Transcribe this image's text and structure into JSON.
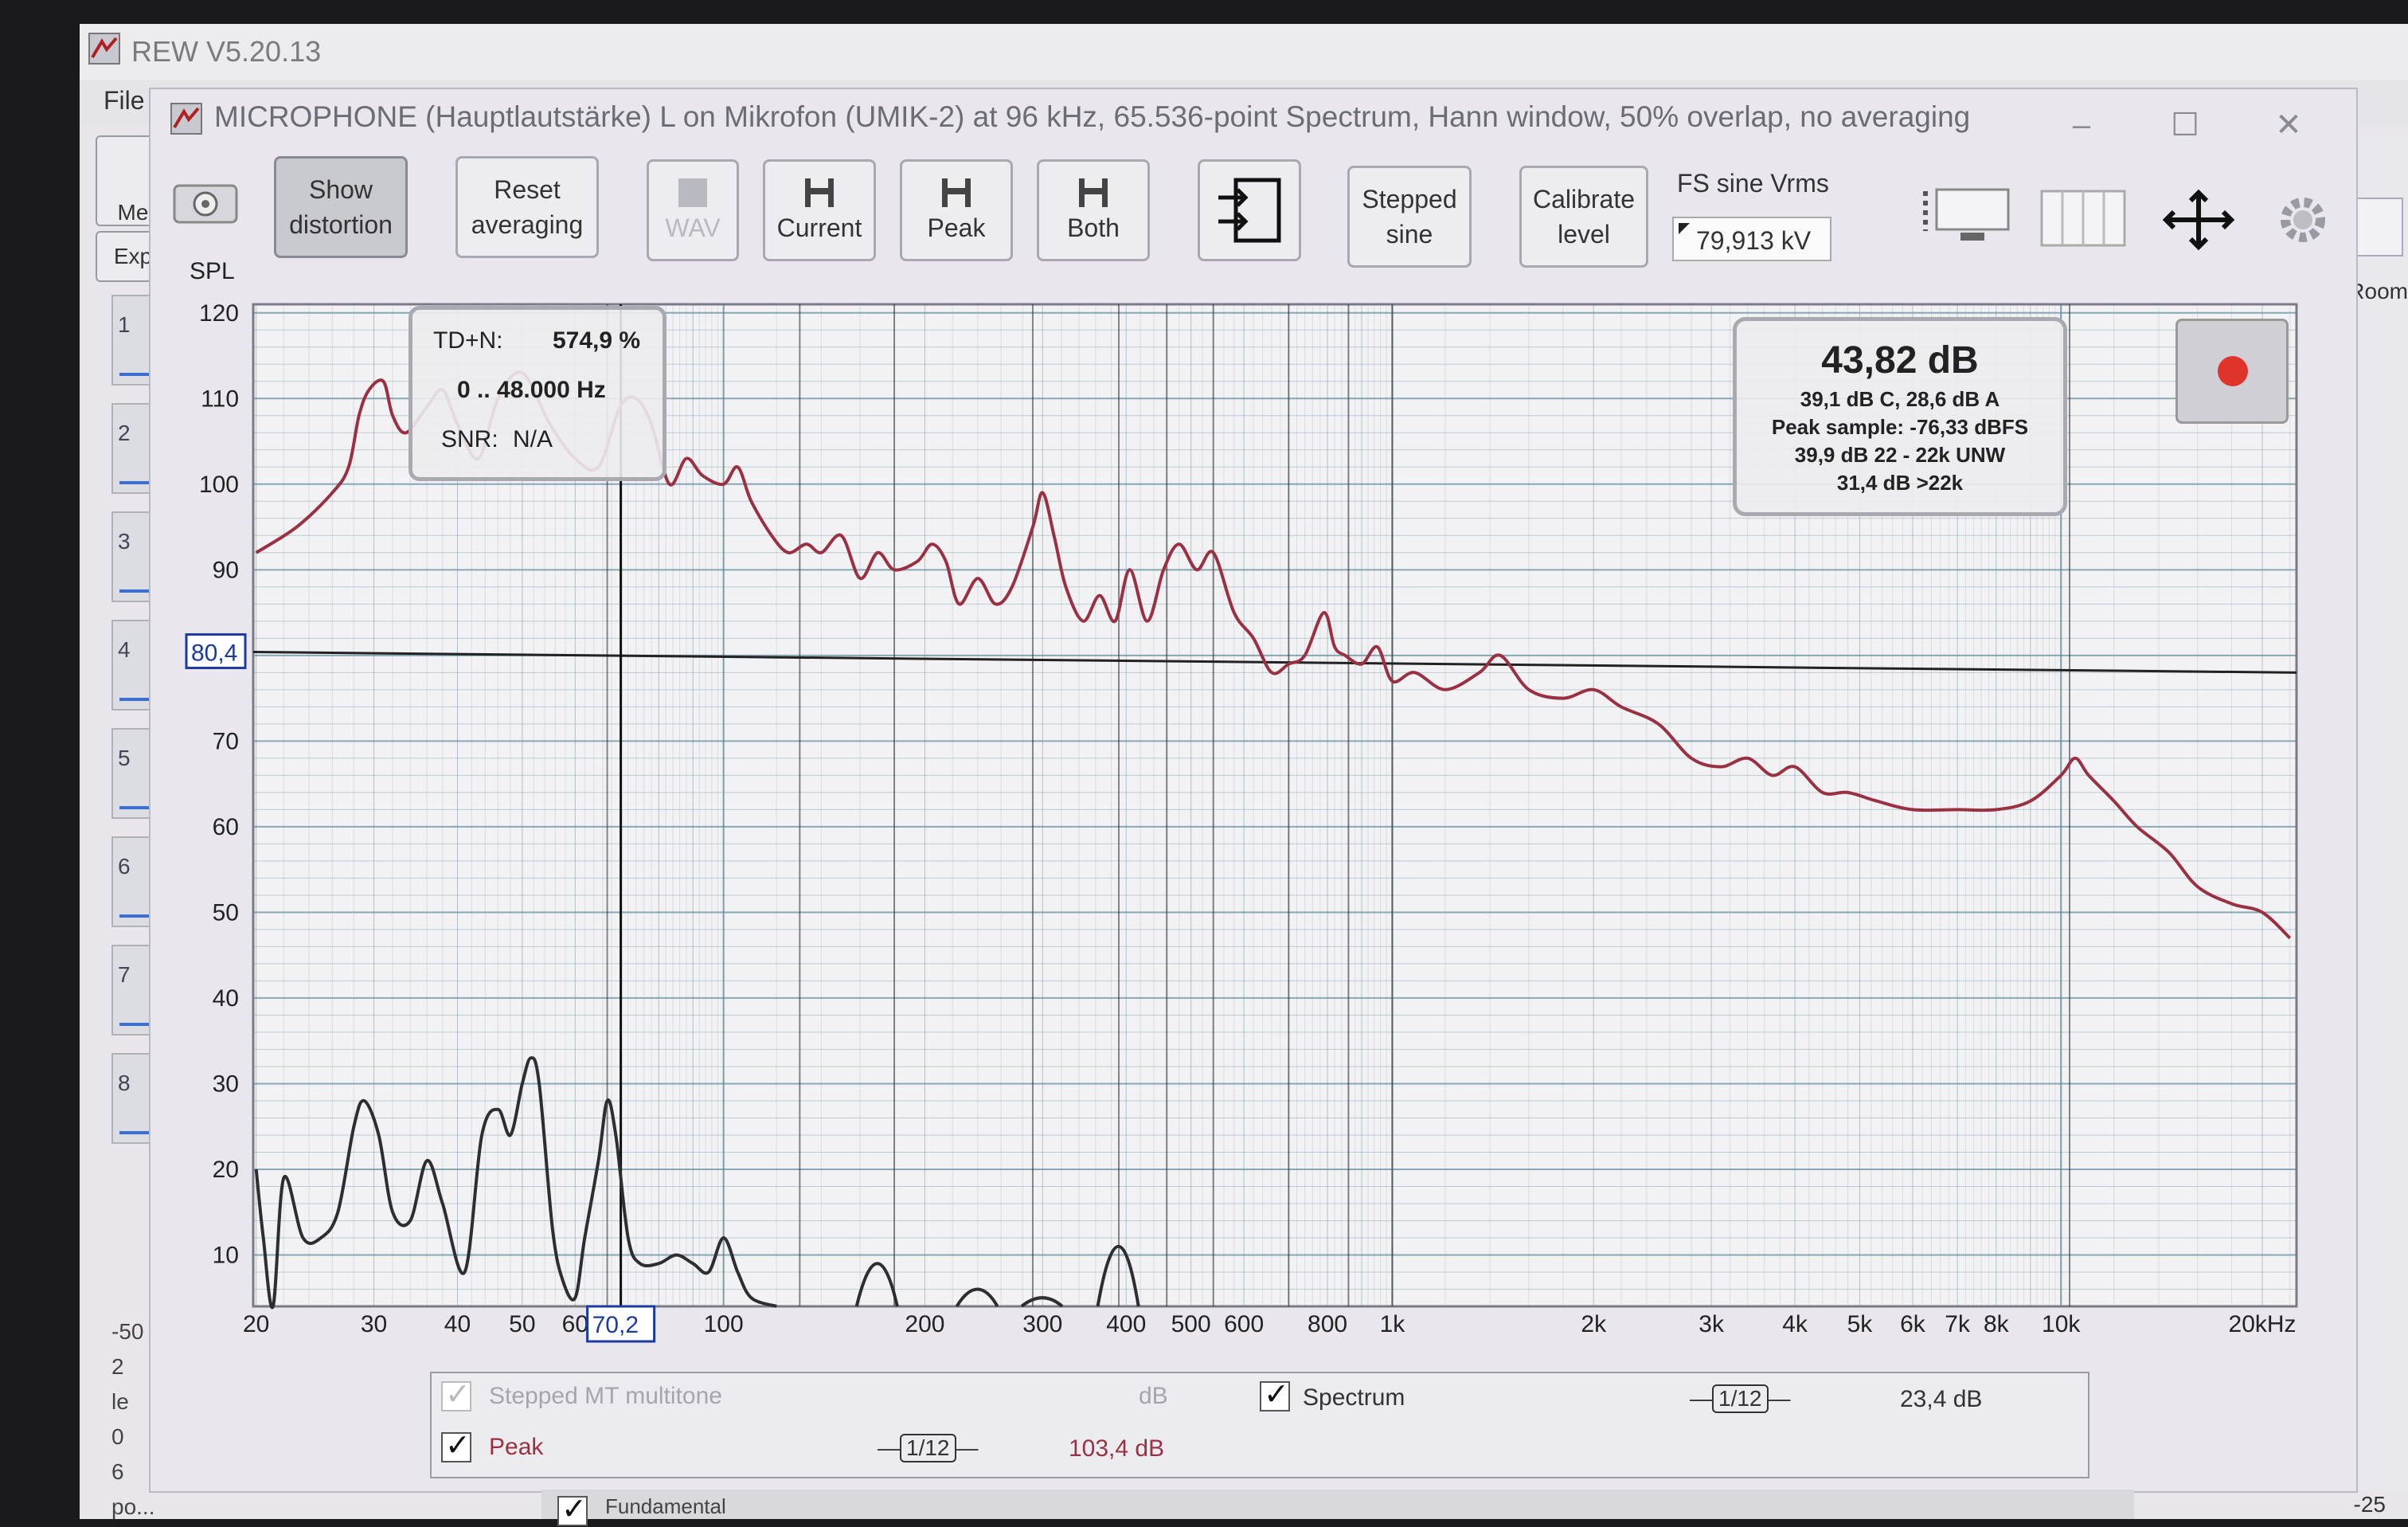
{
  "app": {
    "title": "REW V5.20.13",
    "menu_file": "File",
    "side_labels": [
      "Me",
      "Exp"
    ],
    "measurement_slots": [
      "1",
      "2",
      "3",
      "4",
      "5",
      "6",
      "7",
      "8"
    ],
    "side_foot_lines": [
      "-50",
      "2",
      "le",
      "0",
      "6",
      "po..."
    ],
    "right_label": "Room",
    "right_value": "-25",
    "colors": {
      "slot_line": "#3b6fd0"
    }
  },
  "window": {
    "title": "MICROPHONE (Hauptlautstärke) L on Mikrofon (UMIK-2) at 96 kHz, 65.536-point Spectrum, Hann window, 50% overlap, no averaging",
    "minimize_icon": "minimize-icon",
    "maximize_icon": "maximize-icon",
    "close_icon": "close-icon"
  },
  "toolbar": {
    "camera_icon": "camera-icon",
    "show_distortion": [
      "Show",
      "distortion"
    ],
    "reset_averaging": [
      "Reset",
      "averaging"
    ],
    "wav": "WAV",
    "current": "Current",
    "peak": "Peak",
    "both": "Both",
    "export_icon": "export-icon",
    "stepped_sine": [
      "Stepped",
      "sine"
    ],
    "calibrate_level": [
      "Calibrate",
      "level"
    ],
    "fs_label": "FS sine Vrms",
    "fs_value": "79,913 kV",
    "layout_icon": "layout-icon",
    "bars_icon": "bars-icon",
    "move_icon": "move-icon",
    "settings_icon": "gear-icon"
  },
  "tdn": {
    "label": "TD+N:",
    "value": "574,9 %",
    "range": "0 .. 48.000 Hz",
    "snr_label": "SNR:",
    "snr_value": "N/A"
  },
  "level": {
    "main": "43,82 dB",
    "line1": "39,1 dB C, 28,6 dB A",
    "line2": "Peak sample: -76,33 dBFS",
    "line3": "39,9 dB 22 - 22k UNW",
    "line4": "31,4 dB >22k"
  },
  "legend": {
    "stepped_label": "Stepped MT multitone",
    "stepped_unit": "dB",
    "peak_label": "Peak",
    "peak_smoothing": "1/12",
    "peak_value": "103,4 dB",
    "spectrum_label": "Spectrum",
    "spectrum_smoothing": "1/12",
    "spectrum_value": "23,4 dB",
    "bottom_label": "Fundamental"
  },
  "chart_data": {
    "type": "line",
    "ylabel": "SPL",
    "y_ticks": [
      120,
      110,
      100,
      90,
      80,
      70,
      60,
      50,
      40,
      30,
      20,
      10
    ],
    "ylim": [
      4,
      121
    ],
    "x_scale": "log",
    "x_ticks": [
      {
        "f": 20,
        "label": "20"
      },
      {
        "f": 30,
        "label": "30"
      },
      {
        "f": 40,
        "label": "40"
      },
      {
        "f": 50,
        "label": "50"
      },
      {
        "f": 60,
        "label": "60"
      },
      {
        "f": 100,
        "label": "100"
      },
      {
        "f": 200,
        "label": "200"
      },
      {
        "f": 300,
        "label": "300"
      },
      {
        "f": 400,
        "label": "400"
      },
      {
        "f": 500,
        "label": "500"
      },
      {
        "f": 600,
        "label": "600"
      },
      {
        "f": 800,
        "label": "800"
      },
      {
        "f": 1000,
        "label": "1k"
      },
      {
        "f": 2000,
        "label": "2k"
      },
      {
        "f": 3000,
        "label": "3k"
      },
      {
        "f": 4000,
        "label": "4k"
      },
      {
        "f": 5000,
        "label": "5k"
      },
      {
        "f": 6000,
        "label": "6k"
      },
      {
        "f": 7000,
        "label": "7k"
      },
      {
        "f": 8000,
        "label": "8k"
      },
      {
        "f": 10000,
        "label": "10k"
      },
      {
        "f": 20000,
        "label": "20kHz"
      }
    ],
    "xlim": [
      19.8,
      22500
    ],
    "cursor": {
      "x_label": "70,2",
      "x": 70.2,
      "y_label": "80,4",
      "y": 80.4
    },
    "horizontal_line": {
      "y_start": 80.4,
      "y_end": 78.0
    },
    "harmonic_markers": [
      67,
      130,
      180,
      290,
      390,
      460,
      540,
      700,
      860,
      1000,
      10300
    ],
    "colors": {
      "peak": "#9a3142",
      "spectrum": "#2d2d32",
      "grid": "#5a8a9a",
      "cursor": "#111111",
      "axis_box": "#1d3aa0"
    },
    "series": [
      {
        "name": "Peak",
        "points": [
          [
            20,
            92
          ],
          [
            23,
            95
          ],
          [
            26,
            99
          ],
          [
            27.5,
            102
          ],
          [
            28.5,
            108
          ],
          [
            29.5,
            111
          ],
          [
            31,
            112
          ],
          [
            32,
            108
          ],
          [
            33.5,
            106
          ],
          [
            36,
            109
          ],
          [
            38,
            111
          ],
          [
            40,
            107
          ],
          [
            43,
            103
          ],
          [
            46,
            110
          ],
          [
            50,
            113
          ],
          [
            55,
            107
          ],
          [
            60,
            103
          ],
          [
            65,
            102
          ],
          [
            70,
            109
          ],
          [
            74,
            110
          ],
          [
            78,
            107
          ],
          [
            83,
            100
          ],
          [
            88,
            103
          ],
          [
            93,
            101
          ],
          [
            100,
            100
          ],
          [
            105,
            102
          ],
          [
            110,
            98
          ],
          [
            118,
            94
          ],
          [
            125,
            92
          ],
          [
            133,
            93
          ],
          [
            140,
            92
          ],
          [
            150,
            94
          ],
          [
            160,
            89
          ],
          [
            170,
            92
          ],
          [
            180,
            90
          ],
          [
            195,
            91
          ],
          [
            205,
            93
          ],
          [
            215,
            91
          ],
          [
            225,
            86
          ],
          [
            240,
            89
          ],
          [
            255,
            86
          ],
          [
            270,
            88
          ],
          [
            290,
            95
          ],
          [
            300,
            99
          ],
          [
            312,
            94
          ],
          [
            325,
            88
          ],
          [
            345,
            84
          ],
          [
            365,
            87
          ],
          [
            385,
            84
          ],
          [
            405,
            90
          ],
          [
            430,
            84
          ],
          [
            455,
            90
          ],
          [
            480,
            93
          ],
          [
            510,
            90
          ],
          [
            540,
            92
          ],
          [
            580,
            85
          ],
          [
            620,
            82
          ],
          [
            660,
            78
          ],
          [
            700,
            79
          ],
          [
            740,
            80
          ],
          [
            790,
            85
          ],
          [
            820,
            81
          ],
          [
            850,
            80
          ],
          [
            900,
            79
          ],
          [
            950,
            81
          ],
          [
            1000,
            77
          ],
          [
            1080,
            78
          ],
          [
            1200,
            76
          ],
          [
            1350,
            78
          ],
          [
            1450,
            80
          ],
          [
            1600,
            76
          ],
          [
            1800,
            75
          ],
          [
            2000,
            76
          ],
          [
            2200,
            74
          ],
          [
            2500,
            72
          ],
          [
            2800,
            68
          ],
          [
            3100,
            67
          ],
          [
            3400,
            68
          ],
          [
            3700,
            66
          ],
          [
            4000,
            67
          ],
          [
            4400,
            64
          ],
          [
            4800,
            64
          ],
          [
            5300,
            63
          ],
          [
            6000,
            62
          ],
          [
            7000,
            62
          ],
          [
            8000,
            62
          ],
          [
            9000,
            63
          ],
          [
            10000,
            66
          ],
          [
            10500,
            68
          ],
          [
            11000,
            66
          ],
          [
            12000,
            63
          ],
          [
            13000,
            60
          ],
          [
            14500,
            57
          ],
          [
            16000,
            53
          ],
          [
            18000,
            51
          ],
          [
            20000,
            50
          ],
          [
            22000,
            47
          ]
        ]
      },
      {
        "name": "Spectrum",
        "points": [
          [
            20,
            20
          ],
          [
            20.5,
            12
          ],
          [
            21.2,
            4
          ],
          [
            22,
            19
          ],
          [
            23.5,
            12
          ],
          [
            25,
            12
          ],
          [
            26.5,
            15
          ],
          [
            28,
            25
          ],
          [
            29,
            28
          ],
          [
            30.5,
            24
          ],
          [
            32,
            15
          ],
          [
            34,
            14
          ],
          [
            36,
            21
          ],
          [
            38,
            16
          ],
          [
            41,
            8
          ],
          [
            43.5,
            24
          ],
          [
            46,
            27
          ],
          [
            48,
            24
          ],
          [
            50,
            30
          ],
          [
            51.5,
            33
          ],
          [
            53,
            30
          ],
          [
            55.5,
            13
          ],
          [
            57.5,
            7
          ],
          [
            60,
            5
          ],
          [
            62,
            12
          ],
          [
            65,
            21
          ],
          [
            67,
            28
          ],
          [
            69,
            24
          ],
          [
            72,
            12
          ],
          [
            75,
            9
          ],
          [
            80,
            9
          ],
          [
            85,
            10
          ],
          [
            90,
            9
          ],
          [
            95,
            8
          ],
          [
            100,
            12
          ],
          [
            105,
            8
          ],
          [
            110,
            5
          ],
          [
            120,
            4
          ]
        ]
      }
    ],
    "spectrum_extra_bumps": [
      [
        170,
        4,
        9
      ],
      [
        240,
        4,
        6
      ],
      [
        300,
        4,
        5
      ],
      [
        390,
        4,
        11
      ]
    ]
  }
}
